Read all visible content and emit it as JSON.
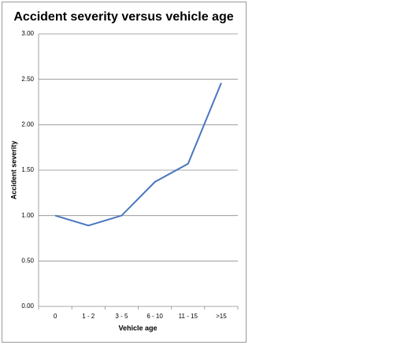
{
  "chart_data": {
    "type": "line",
    "title": "Accident severity versus vehicle age",
    "x_label": "Vehicle age",
    "y_label": "Accident severity",
    "categories": [
      "0",
      "1 - 2",
      "3 - 5",
      "6 - 10",
      "11 - 15",
      ">15"
    ],
    "values": [
      1.0,
      0.89,
      1.0,
      1.37,
      1.57,
      2.46
    ],
    "color": "#4a76c0",
    "ylim": [
      0,
      3
    ],
    "yticks": [
      {
        "value": 0,
        "label": "0.00"
      },
      {
        "value": 0.5,
        "label": "0.50"
      },
      {
        "value": 1,
        "label": "1.00"
      },
      {
        "value": 1.5,
        "label": "1.50"
      },
      {
        "value": 2,
        "label": "2.00"
      },
      {
        "value": 2.5,
        "label": "2.50"
      },
      {
        "value": 3,
        "label": "3.00"
      }
    ],
    "grid": true
  }
}
